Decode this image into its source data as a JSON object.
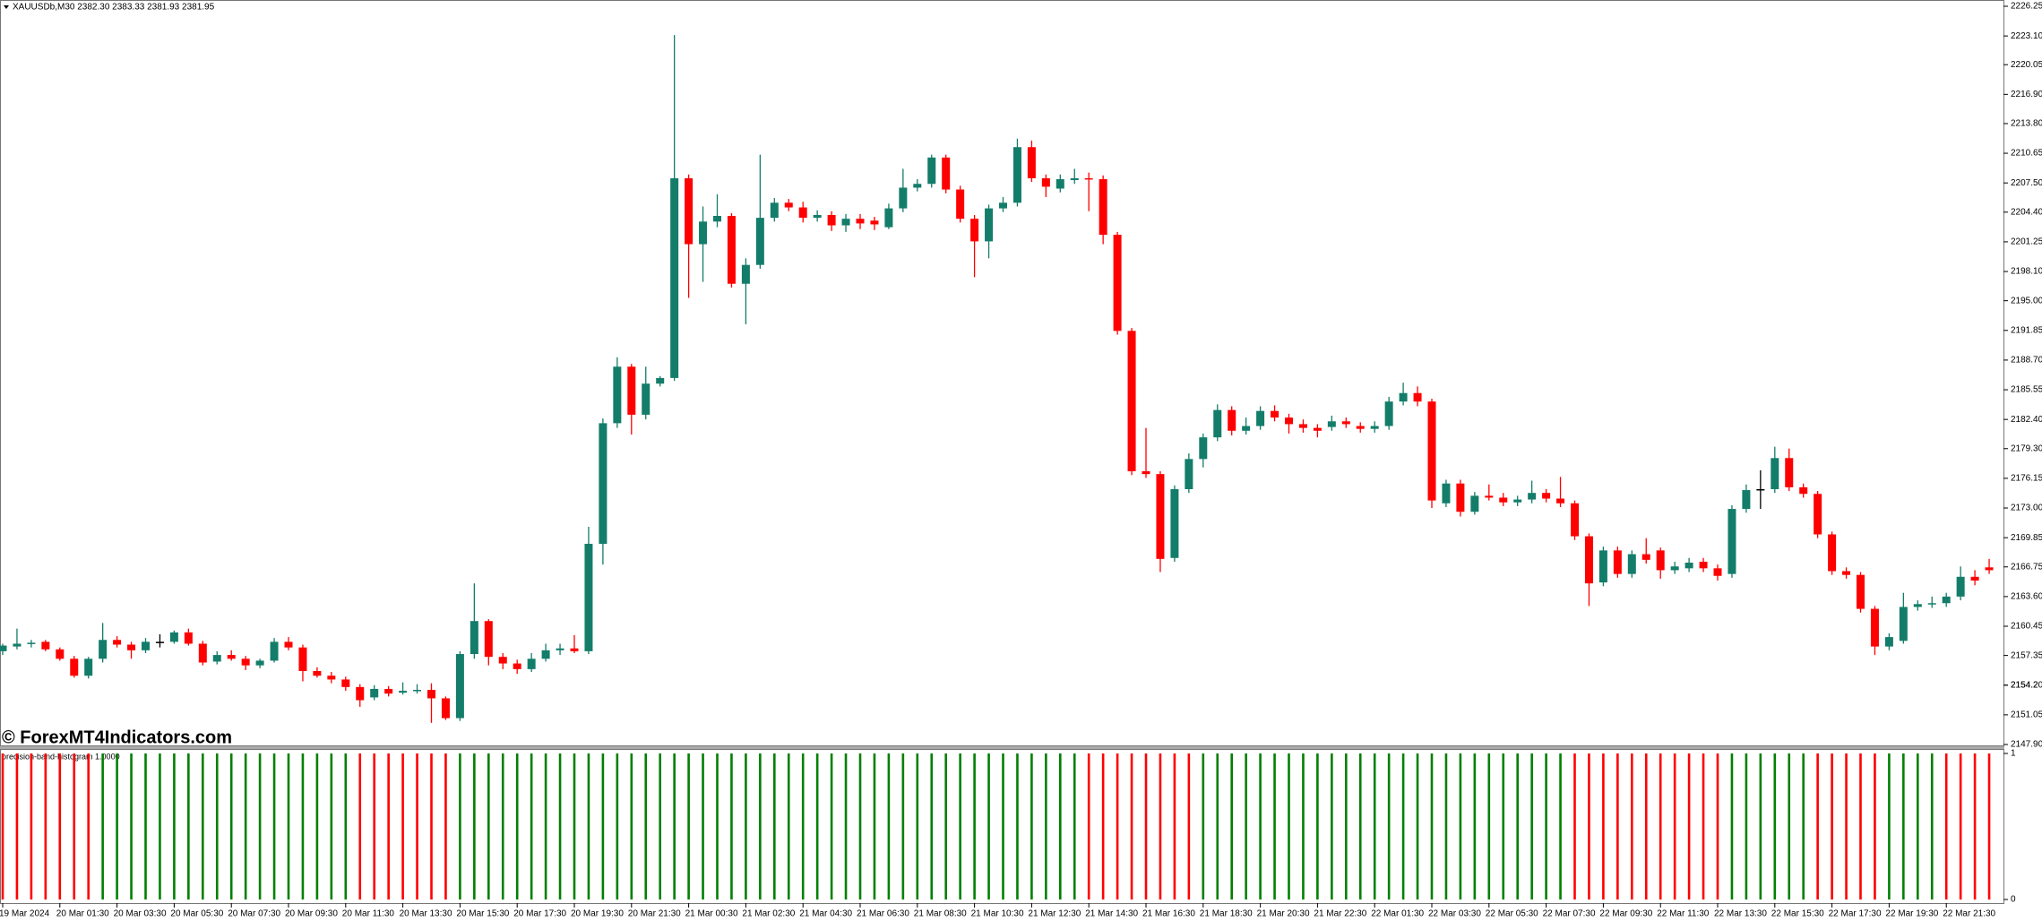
{
  "header": {
    "text": "XAUUSDb,M30  2382.30 2383.33 2381.93 2381.95"
  },
  "watermark": "© ForexMT4Indicators.com",
  "chart_data": [
    {
      "type": "candlestick",
      "up_color": "#137d6a",
      "down_color": "#ff0000",
      "doji_color": "#000000",
      "categories": [
        "19 Mar 2024",
        null,
        null,
        null,
        "20 Mar 01:30",
        null,
        null,
        null,
        "20 Mar 03:30",
        null,
        null,
        null,
        "20 Mar 05:30",
        null,
        null,
        null,
        "20 Mar 07:30",
        null,
        null,
        null,
        "20 Mar 09:30",
        null,
        null,
        null,
        "20 Mar 11:30",
        null,
        null,
        null,
        "20 Mar 13:30",
        null,
        null,
        null,
        "20 Mar 15:30",
        null,
        null,
        null,
        "20 Mar 17:30",
        null,
        null,
        null,
        "20 Mar 19:30",
        null,
        null,
        null,
        "20 Mar 21:30",
        null,
        null,
        null,
        "21 Mar 00:30",
        null,
        null,
        null,
        "21 Mar 02:30",
        null,
        null,
        null,
        "21 Mar 04:30",
        null,
        null,
        null,
        "21 Mar 06:30",
        null,
        null,
        null,
        "21 Mar 08:30",
        null,
        null,
        null,
        "21 Mar 10:30",
        null,
        null,
        null,
        "21 Mar 12:30",
        null,
        null,
        null,
        "21 Mar 14:30",
        null,
        null,
        null,
        "21 Mar 16:30",
        null,
        null,
        null,
        "21 Mar 18:30",
        null,
        null,
        null,
        "21 Mar 20:30",
        null,
        null,
        null,
        "21 Mar 22:30",
        null,
        null,
        null,
        "22 Mar 01:30",
        null,
        null,
        null,
        "22 Mar 03:30",
        null,
        null,
        null,
        "22 Mar 05:30",
        null,
        null,
        null,
        "22 Mar 07:30",
        null,
        null,
        null,
        "22 Mar 09:30",
        null,
        null,
        null,
        "22 Mar 11:30",
        null,
        null,
        null,
        "22 Mar 13:30",
        null,
        null,
        null,
        "22 Mar 15:30",
        null,
        null,
        null,
        "22 Mar 17:30",
        null,
        null,
        null,
        "22 Mar 19:30",
        null,
        null,
        null,
        "22 Mar 21:30",
        null,
        null,
        null
      ],
      "open": [
        2157.8,
        2158.3,
        2158.6,
        2158.8,
        2158.0,
        2157.0,
        2155.2,
        2157.0,
        2159.0,
        2158.5,
        2157.9,
        2158.8,
        2158.8,
        2159.8,
        2158.6,
        2156.7,
        2157.4,
        2157.0,
        2156.3,
        2156.8,
        2158.8,
        2158.2,
        2155.7,
        2155.2,
        2154.8,
        2154.0,
        2152.9,
        2153.8,
        2153.4,
        2153.6,
        2153.7,
        2152.8,
        2150.7,
        2157.5,
        2161.0,
        2157.2,
        2156.5,
        2155.9,
        2157.0,
        2157.9,
        2158.1,
        2157.8,
        2169.2,
        2182.0,
        2188.0,
        2182.9,
        2186.2,
        2186.8,
        2208.0,
        2201.0,
        2203.4,
        2204.0,
        2196.8,
        2198.8,
        2203.8,
        2205.4,
        2204.9,
        2203.8,
        2204.1,
        2203.0,
        2203.7,
        2203.5,
        2202.8,
        2204.8,
        2207.0,
        2207.4,
        2210.2,
        2206.8,
        2203.7,
        2201.3,
        2204.8,
        2205.4,
        2211.3,
        2208.0,
        2206.9,
        2207.8,
        2208.0,
        2207.9,
        2202.0,
        2191.8,
        2176.9,
        2176.6,
        2167.7,
        2175.0,
        2178.2,
        2180.5,
        2183.4,
        2181.2,
        2181.7,
        2183.3,
        2182.6,
        2181.9,
        2181.5,
        2181.6,
        2182.2,
        2181.7,
        2181.4,
        2181.7,
        2184.3,
        2185.2,
        2184.3,
        2173.5,
        2175.6,
        2172.6,
        2174.3,
        2174.1,
        2173.6,
        2173.9,
        2174.6,
        2174.0,
        2173.5,
        2170.0,
        2165.1,
        2168.5,
        2166.0,
        2168.1,
        2168.5,
        2166.4,
        2166.6,
        2167.3,
        2166.6,
        2166.0,
        2172.9,
        2175.0,
        2175.0,
        2178.3,
        2175.2,
        2174.5,
        2170.2,
        2166.3,
        2165.9,
        2162.3,
        2158.3,
        2158.9,
        2162.5,
        2162.8,
        2162.9,
        2163.6,
        2165.7,
        2166.7
      ],
      "high": [
        2158.6,
        2160.2,
        2159.0,
        2159.0,
        2158.2,
        2157.3,
        2157.2,
        2160.8,
        2159.4,
        2158.8,
        2159.2,
        2159.6,
        2160.0,
        2160.2,
        2158.9,
        2157.8,
        2157.9,
        2157.3,
        2157.0,
        2159.2,
        2159.3,
        2158.5,
        2156.1,
        2155.6,
        2155.1,
        2154.3,
        2154.2,
        2154.1,
        2154.5,
        2154.3,
        2154.4,
        2153.0,
        2157.8,
        2165.0,
        2161.2,
        2157.6,
        2156.9,
        2157.6,
        2158.6,
        2158.6,
        2159.5,
        2171.0,
        2182.5,
        2189.0,
        2188.3,
        2188.0,
        2187.0,
        2223.2,
        2208.4,
        2205.0,
        2206.3,
        2204.3,
        2199.5,
        2210.5,
        2205.9,
        2205.8,
        2205.5,
        2204.6,
        2204.5,
        2204.2,
        2204.2,
        2203.9,
        2205.3,
        2209.0,
        2207.9,
        2210.5,
        2210.5,
        2207.2,
        2204.1,
        2205.2,
        2206.0,
        2212.2,
        2212.0,
        2208.4,
        2208.4,
        2209.0,
        2208.6,
        2208.3,
        2202.3,
        2192.1,
        2181.5,
        2176.9,
        2175.4,
        2178.8,
        2180.9,
        2184.0,
        2183.8,
        2182.6,
        2183.8,
        2183.9,
        2183.0,
        2182.4,
        2181.9,
        2182.8,
        2182.6,
        2182.1,
        2182.2,
        2184.8,
        2186.3,
        2185.9,
        2184.6,
        2176.0,
        2176.0,
        2174.7,
        2175.5,
        2174.6,
        2174.3,
        2175.9,
        2175.0,
        2176.3,
        2173.8,
        2170.3,
        2168.9,
        2168.9,
        2168.5,
        2169.8,
        2168.8,
        2167.3,
        2167.7,
        2167.7,
        2167.0,
        2173.3,
        2175.5,
        2177.0,
        2179.5,
        2179.3,
        2175.6,
        2174.8,
        2170.5,
        2166.7,
        2166.2,
        2162.6,
        2159.7,
        2164.0,
        2163.2,
        2163.6,
        2164.0,
        2166.8,
        2166.4,
        2167.6
      ],
      "low": [
        2157.4,
        2158.0,
        2158.2,
        2157.8,
        2156.8,
        2155.0,
        2154.9,
        2156.6,
        2158.2,
        2157.0,
        2157.6,
        2158.2,
        2158.6,
        2158.4,
        2156.3,
        2156.4,
        2156.8,
        2155.8,
        2156.0,
        2156.6,
        2157.9,
        2154.6,
        2155.0,
        2154.4,
        2153.6,
        2151.9,
        2152.6,
        2153.0,
        2153.2,
        2153.3,
        2150.2,
        2150.5,
        2150.4,
        2157.0,
        2156.3,
        2155.9,
        2155.4,
        2155.6,
        2156.7,
        2157.4,
        2157.6,
        2157.5,
        2167.0,
        2181.5,
        2180.8,
        2182.4,
        2185.9,
        2186.5,
        2195.3,
        2197.0,
        2202.8,
        2196.4,
        2192.5,
        2198.4,
        2203.4,
        2204.5,
        2203.3,
        2203.4,
        2202.4,
        2202.3,
        2202.6,
        2202.5,
        2202.6,
        2204.4,
        2206.6,
        2207.0,
        2206.4,
        2203.3,
        2197.5,
        2199.5,
        2204.4,
        2205.0,
        2207.6,
        2206.0,
        2206.5,
        2207.4,
        2204.5,
        2201.0,
        2191.4,
        2176.5,
        2176.2,
        2166.2,
        2167.3,
        2174.6,
        2177.3,
        2180.1,
        2180.7,
        2180.8,
        2181.3,
        2182.2,
        2180.9,
        2181.0,
        2180.5,
        2181.2,
        2181.5,
        2181.0,
        2181.0,
        2181.3,
        2183.9,
        2183.8,
        2173.0,
        2173.1,
        2172.1,
        2172.3,
        2173.8,
        2173.2,
        2173.2,
        2173.5,
        2173.6,
        2173.1,
        2169.6,
        2162.6,
        2164.7,
        2165.6,
        2165.6,
        2167.1,
        2165.5,
        2166.0,
        2166.2,
        2166.2,
        2165.3,
        2165.6,
        2172.5,
        2172.9,
        2174.6,
        2174.8,
        2174.1,
        2169.8,
        2165.9,
        2165.5,
        2161.9,
        2157.4,
        2157.9,
        2158.6,
        2162.1,
        2162.4,
        2162.5,
        2163.2,
        2164.8,
        2166.0
      ],
      "close": [
        2158.4,
        2158.6,
        2158.7,
        2158.0,
        2157.0,
        2155.2,
        2157.0,
        2159.0,
        2158.5,
        2157.9,
        2158.8,
        2158.8,
        2159.8,
        2158.6,
        2156.6,
        2157.4,
        2157.0,
        2156.3,
        2156.8,
        2158.8,
        2158.2,
        2155.7,
        2155.2,
        2154.8,
        2154.0,
        2152.6,
        2153.8,
        2153.3,
        2153.6,
        2153.7,
        2152.8,
        2150.7,
        2157.5,
        2161.0,
        2157.2,
        2156.5,
        2155.9,
        2157.0,
        2157.9,
        2158.1,
        2157.8,
        2169.2,
        2182.0,
        2188.0,
        2182.9,
        2186.2,
        2186.8,
        2208.0,
        2201.0,
        2203.4,
        2204.0,
        2196.8,
        2198.8,
        2203.8,
        2205.4,
        2204.9,
        2203.8,
        2204.1,
        2203.0,
        2203.7,
        2203.2,
        2203.1,
        2204.8,
        2207.0,
        2207.4,
        2210.2,
        2206.8,
        2203.7,
        2201.3,
        2204.8,
        2205.4,
        2211.3,
        2208.0,
        2207.1,
        2207.9,
        2208.0,
        2207.9,
        2202.0,
        2191.8,
        2176.9,
        2176.6,
        2167.6,
        2175.0,
        2178.2,
        2180.5,
        2183.4,
        2181.2,
        2181.7,
        2183.3,
        2182.6,
        2181.9,
        2181.5,
        2181.2,
        2182.2,
        2181.9,
        2181.4,
        2181.7,
        2184.3,
        2185.2,
        2184.3,
        2173.8,
        2175.6,
        2172.6,
        2174.3,
        2174.1,
        2173.6,
        2173.9,
        2174.6,
        2174.0,
        2173.5,
        2170.0,
        2165.0,
        2168.5,
        2166.0,
        2168.1,
        2167.5,
        2166.4,
        2166.8,
        2167.2,
        2166.6,
        2165.8,
        2172.9,
        2174.9,
        2175.0,
        2178.3,
        2175.2,
        2174.5,
        2170.2,
        2166.3,
        2165.9,
        2162.3,
        2158.3,
        2159.3,
        2162.5,
        2162.8,
        2162.9,
        2163.6,
        2165.7,
        2165.3,
        2166.4
      ],
      "ylim": [
        2147.9,
        2226.25
      ],
      "yticks": [
        {
          "value": 2147.9,
          "label": "2147.90"
        },
        2151.05,
        2154.2,
        {
          "value": 2154.2,
          "label": "2154.20"
        },
        2157.35,
        2160.45,
        {
          "value": 2163.6,
          "label": "2163.60"
        },
        2166.75,
        2169.85,
        {
          "value": 2173.0,
          "label": "2173.00"
        },
        2176.15,
        {
          "value": 2179.3,
          "label": "2179.30"
        },
        {
          "value": 2182.4,
          "label": "2182.40"
        },
        2185.55,
        {
          "value": 2188.7,
          "label": "2188.70"
        },
        2191.85,
        {
          "value": 2195.0,
          "label": "2195.00"
        },
        {
          "value": 2198.1,
          "label": "2198.10"
        },
        2201.25,
        {
          "value": 2204.4,
          "label": "2204.40"
        },
        {
          "value": 2207.5,
          "label": "2207.50"
        },
        2210.65,
        {
          "value": 2213.8,
          "label": "2213.80"
        },
        {
          "value": 2216.9,
          "label": "2216.90"
        },
        2220.05,
        {
          "value": 2223.1,
          "label": "2223.10"
        },
        2226.25
      ]
    },
    {
      "type": "histogram",
      "title": "precision-band-histogram 1.0000",
      "values": [
        1,
        1,
        1,
        1,
        1,
        1,
        1,
        1,
        1,
        1,
        1,
        1,
        1,
        1,
        1,
        1,
        1,
        1,
        1,
        1,
        1,
        1,
        1,
        1,
        1,
        1,
        1,
        1,
        1,
        1,
        1,
        1,
        1,
        1,
        1,
        1,
        1,
        1,
        1,
        1,
        1,
        1,
        1,
        1,
        1,
        1,
        1,
        1,
        1,
        1,
        1,
        1,
        1,
        1,
        1,
        1,
        1,
        1,
        1,
        1,
        1,
        1,
        1,
        1,
        1,
        1,
        1,
        1,
        1,
        1,
        1,
        1,
        1,
        1,
        1,
        1,
        1,
        1,
        1,
        1,
        1,
        1,
        1,
        1,
        1,
        1,
        1,
        1,
        1,
        1,
        1,
        1,
        1,
        1,
        1,
        1,
        1,
        1,
        1,
        1,
        1,
        1,
        1,
        1,
        1,
        1,
        1,
        1,
        1,
        1,
        1,
        1,
        1,
        1,
        1,
        1,
        1,
        1,
        1,
        1,
        1,
        1,
        1,
        1,
        1,
        1,
        1,
        1,
        1,
        1,
        1,
        1,
        1,
        1,
        1,
        1,
        1,
        1,
        1,
        1
      ],
      "colors": [
        "red",
        "red",
        "red",
        "red",
        "red",
        "red",
        "red",
        "green",
        "green",
        "green",
        "green",
        "green",
        "green",
        "green",
        "green",
        "green",
        "green",
        "green",
        "green",
        "green",
        "green",
        "green",
        "green",
        "green",
        "green",
        "red",
        "red",
        "red",
        "red",
        "red",
        "red",
        "red",
        "green",
        "green",
        "green",
        "green",
        "green",
        "green",
        "green",
        "green",
        "green",
        "green",
        "green",
        "green",
        "green",
        "green",
        "green",
        "green",
        "green",
        "green",
        "green",
        "green",
        "green",
        "green",
        "green",
        "green",
        "green",
        "green",
        "green",
        "green",
        "green",
        "green",
        "green",
        "green",
        "green",
        "green",
        "green",
        "green",
        "green",
        "green",
        "green",
        "green",
        "green",
        "green",
        "green",
        "green",
        "red",
        "red",
        "red",
        "red",
        "red",
        "red",
        "red",
        "red",
        "green",
        "green",
        "green",
        "green",
        "green",
        "green",
        "green",
        "green",
        "green",
        "green",
        "green",
        "green",
        "green",
        "green",
        "green",
        "green",
        "green",
        "green",
        "green",
        "green",
        "green",
        "green",
        "green",
        "green",
        "green",
        "green",
        "red",
        "red",
        "red",
        "red",
        "red",
        "red",
        "red",
        "red",
        "red",
        "red",
        "red",
        "green",
        "green",
        "green",
        "green",
        "green",
        "green",
        "red",
        "red",
        "red",
        "red",
        "red",
        "green",
        "green",
        "green",
        "green",
        "red",
        "red",
        "red",
        "red"
      ],
      "ylim": [
        0,
        1
      ],
      "yticks": [
        0,
        1
      ]
    }
  ]
}
